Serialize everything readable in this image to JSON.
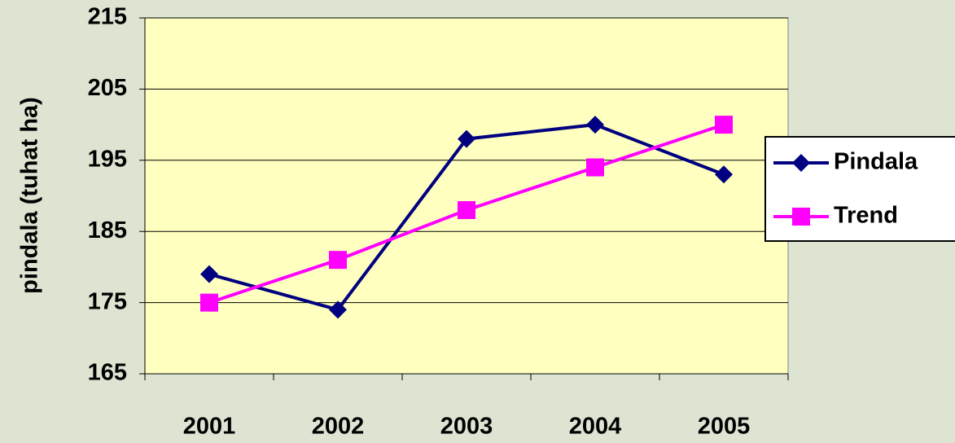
{
  "chart_data": {
    "type": "line",
    "y_label": "pindala (tuhat ha)",
    "categories": [
      "2001",
      "2002",
      "2003",
      "2004",
      "2005"
    ],
    "series": [
      {
        "name": "Pindala",
        "color": "#000080",
        "marker": "diamond",
        "values": [
          179,
          174,
          198,
          200,
          193
        ]
      },
      {
        "name": "Trend",
        "color": "#FF00FF",
        "marker": "square",
        "values": [
          175,
          181,
          188,
          194,
          200
        ]
      }
    ],
    "ylim": [
      165,
      215
    ],
    "yticks": [
      165,
      175,
      185,
      195,
      205,
      215
    ],
    "grid": true,
    "plot_background": "#FFFFC0",
    "legend": "right"
  }
}
